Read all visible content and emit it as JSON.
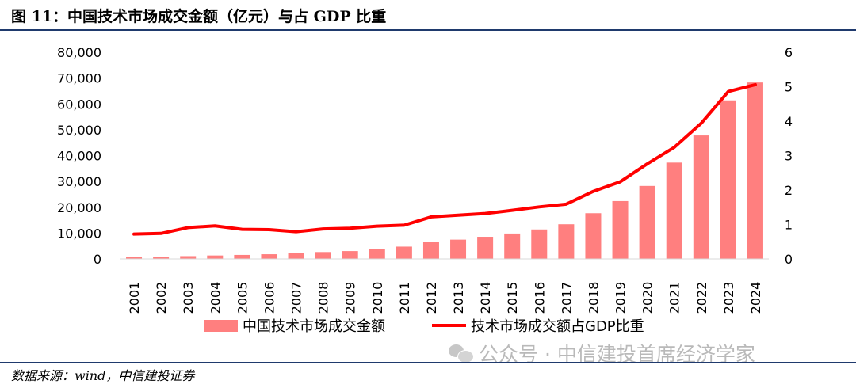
{
  "header": {
    "title": "图 11：中国技术市场成交金额（亿元）与占 GDP 比重"
  },
  "footer": {
    "source": "数据来源：wind，中信建投证券"
  },
  "watermark": {
    "icon": "wechat-icon",
    "text": "公众号 · 中信建投首席经济学家"
  },
  "colors": {
    "bar": "#ff7f7f",
    "line": "#ff0000",
    "rule": "#1f3a6d",
    "axis": "#d9d9d9"
  },
  "chart_data": {
    "type": "bar",
    "categories": [
      "2001",
      "2002",
      "2003",
      "2004",
      "2005",
      "2006",
      "2007",
      "2008",
      "2009",
      "2010",
      "2011",
      "2012",
      "2013",
      "2014",
      "2015",
      "2016",
      "2017",
      "2018",
      "2019",
      "2020",
      "2021",
      "2022",
      "2023",
      "2024"
    ],
    "series": [
      {
        "name": "中国技术市场成交金额",
        "type": "bar",
        "axis": "left",
        "color": "#ff7f7f",
        "values": [
          783,
          884,
          1085,
          1334,
          1551,
          1818,
          2226,
          2665,
          3039,
          3907,
          4764,
          6437,
          7469,
          8577,
          9836,
          11407,
          13424,
          17697,
          22398,
          28252,
          37294,
          47791,
          61376,
          68300
        ]
      },
      {
        "name": "技术市场成交额占GDP比重",
        "type": "line",
        "axis": "right",
        "color": "#ff0000",
        "values": [
          0.72,
          0.74,
          0.91,
          0.96,
          0.86,
          0.85,
          0.79,
          0.87,
          0.89,
          0.95,
          0.98,
          1.22,
          1.27,
          1.32,
          1.41,
          1.51,
          1.59,
          1.96,
          2.24,
          2.76,
          3.24,
          3.94,
          4.86,
          5.06
        ]
      }
    ],
    "y_left": {
      "min": 0,
      "max": 80000,
      "ticks": [
        0,
        10000,
        20000,
        30000,
        40000,
        50000,
        60000,
        70000,
        80000
      ],
      "tick_labels": [
        "0",
        "10,000",
        "20,000",
        "30,000",
        "40,000",
        "50,000",
        "60,000",
        "70,000",
        "80,000"
      ]
    },
    "y_right": {
      "min": 0,
      "max": 6,
      "ticks": [
        0,
        1,
        2,
        3,
        4,
        5,
        6
      ],
      "tick_labels": [
        "0",
        "1",
        "2",
        "3",
        "4",
        "5",
        "6"
      ]
    },
    "grid": false,
    "legend": {
      "position": "bottom"
    }
  }
}
